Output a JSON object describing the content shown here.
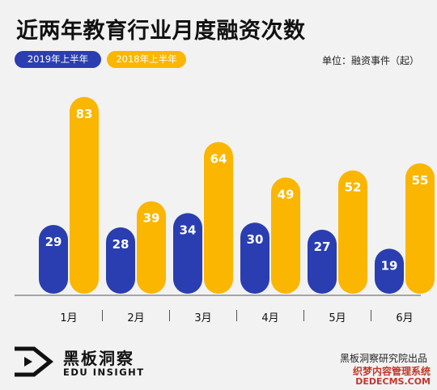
{
  "header": {
    "title": "近两年教育行业月度融资次数",
    "unit": "单位：融资事件（起）"
  },
  "legend": {
    "series1": "2019年上半年",
    "series2": "2018年上半年"
  },
  "chart_data": {
    "type": "bar",
    "title": "近两年教育行业月度融资次数",
    "ylabel": "单位：融资事件（起）",
    "categories": [
      "1月",
      "2月",
      "3月",
      "4月",
      "5月",
      "6月"
    ],
    "series": [
      {
        "name": "2019年上半年",
        "color": "#2a3eb1",
        "values": [
          29,
          28,
          34,
          30,
          27,
          19
        ]
      },
      {
        "name": "2018年上半年",
        "color": "#fab600",
        "values": [
          83,
          39,
          64,
          49,
          52,
          55
        ]
      }
    ],
    "ylim": [
      0,
      90
    ],
    "grid": false,
    "legend_position": "top-left"
  },
  "footer": {
    "brand_cn": "黑板洞察",
    "brand_en": "EDU INSIGHT",
    "credit": "黑板洞察研究院出品",
    "watermark_line1": "织梦内容管理系统",
    "watermark_line2": "DEDECMS.COM"
  }
}
